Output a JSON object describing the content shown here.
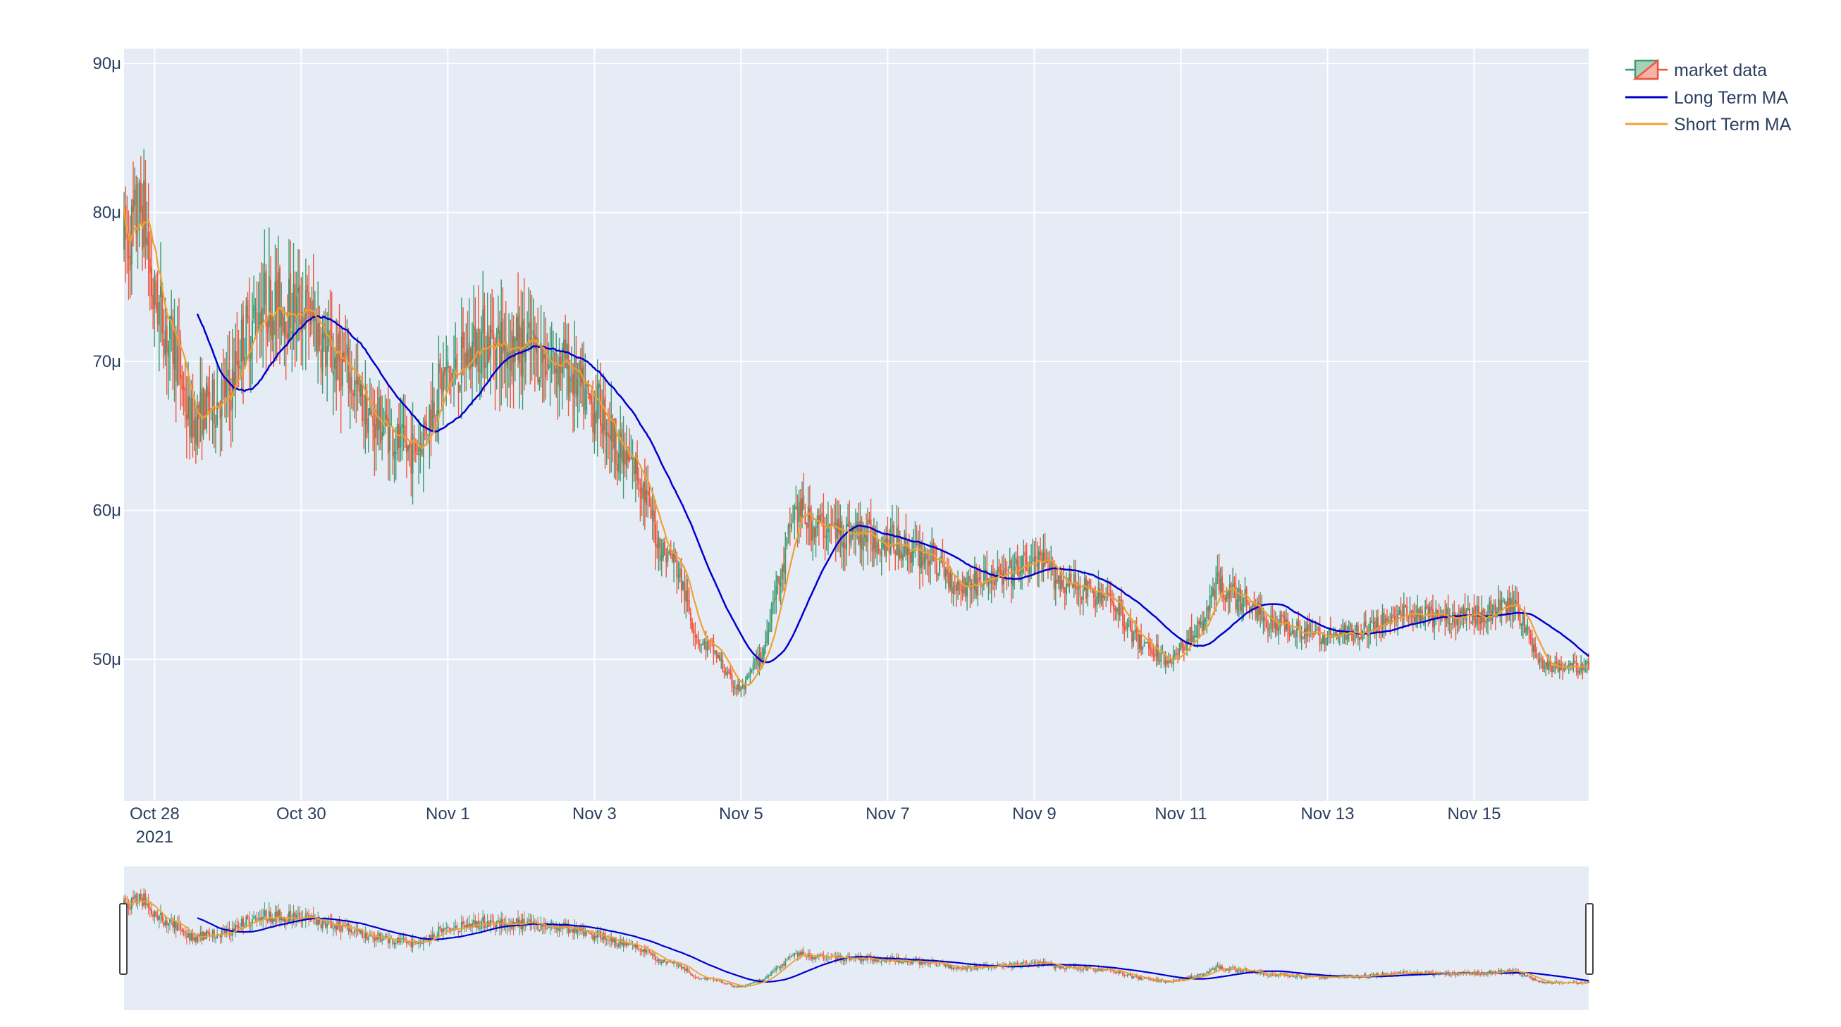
{
  "chart_data": {
    "type": "candlestick",
    "yaxis": {
      "unit_suffix": "μ",
      "ticks": [
        "50μ",
        "60μ",
        "70μ",
        "80μ",
        "90μ"
      ],
      "tick_values": [
        50,
        60,
        70,
        80,
        90
      ],
      "range": [
        40.5,
        91
      ]
    },
    "xaxis": {
      "range": [
        "2021-10-27T14:00",
        "2021-11-16T13:30"
      ],
      "ticks": [
        {
          "date": "2021-10-28",
          "label": "Oct 28",
          "sublabel": "2021"
        },
        {
          "date": "2021-10-30",
          "label": "Oct 30"
        },
        {
          "date": "2021-11-01",
          "label": "Nov 1"
        },
        {
          "date": "2021-11-03",
          "label": "Nov 3"
        },
        {
          "date": "2021-11-05",
          "label": "Nov 5"
        },
        {
          "date": "2021-11-07",
          "label": "Nov 7"
        },
        {
          "date": "2021-11-09",
          "label": "Nov 9"
        },
        {
          "date": "2021-11-11",
          "label": "Nov 11"
        },
        {
          "date": "2021-11-13",
          "label": "Nov 13"
        },
        {
          "date": "2021-11-15",
          "label": "Nov 15"
        }
      ]
    },
    "series_colors": {
      "increasing": "#3D9970",
      "decreasing": "#EF553B",
      "long_ma": "#0000CC",
      "short_ma": "#F0A030"
    },
    "legend": [
      "market data",
      "Long Term MA",
      "Short Term MA"
    ],
    "legend_position": "top-right",
    "grid": true,
    "rangeslider": true,
    "close_anchors": [
      [
        "2021-10-27T14:00",
        78
      ],
      [
        "2021-10-27T20:00",
        80
      ],
      [
        "2021-10-28T00:00",
        74
      ],
      [
        "2021-10-28T06:00",
        71
      ],
      [
        "2021-10-28T12:00",
        66
      ],
      [
        "2021-10-28T18:00",
        67
      ],
      [
        "2021-10-29T00:00",
        68
      ],
      [
        "2021-10-29T06:00",
        72
      ],
      [
        "2021-10-29T12:00",
        74
      ],
      [
        "2021-10-30T00:00",
        73.5
      ],
      [
        "2021-10-30T12:00",
        70
      ],
      [
        "2021-10-31T00:00",
        66
      ],
      [
        "2021-10-31T12:00",
        64
      ],
      [
        "2021-11-01T00:00",
        69
      ],
      [
        "2021-11-01T12:00",
        71.5
      ],
      [
        "2021-11-02T00:00",
        71
      ],
      [
        "2021-11-02T12:00",
        70
      ],
      [
        "2021-11-03T00:00",
        67
      ],
      [
        "2021-11-03T12:00",
        63
      ],
      [
        "2021-11-04T00:00",
        57
      ],
      [
        "2021-11-04T12:00",
        51
      ],
      [
        "2021-11-05T00:00",
        48
      ],
      [
        "2021-11-05T06:00",
        50
      ],
      [
        "2021-11-05T12:00",
        55
      ],
      [
        "2021-11-05T18:00",
        60
      ],
      [
        "2021-11-06T00:00",
        59
      ],
      [
        "2021-11-06T12:00",
        58.5
      ],
      [
        "2021-11-07T00:00",
        58
      ],
      [
        "2021-11-07T12:00",
        57
      ],
      [
        "2021-11-08T00:00",
        55
      ],
      [
        "2021-11-08T12:00",
        55.5
      ],
      [
        "2021-11-09T00:00",
        56.5
      ],
      [
        "2021-11-09T12:00",
        55
      ],
      [
        "2021-11-10T00:00",
        54
      ],
      [
        "2021-11-10T12:00",
        51
      ],
      [
        "2021-11-10T20:00",
        50
      ],
      [
        "2021-11-11T06:00",
        52
      ],
      [
        "2021-11-11T12:00",
        55
      ],
      [
        "2021-11-11T20:00",
        54
      ],
      [
        "2021-11-12T06:00",
        52.5
      ],
      [
        "2021-11-13T00:00",
        51.5
      ],
      [
        "2021-11-13T12:00",
        52
      ],
      [
        "2021-11-14T00:00",
        53
      ],
      [
        "2021-11-14T12:00",
        52.8
      ],
      [
        "2021-11-15T00:00",
        53
      ],
      [
        "2021-11-15T12:00",
        53.5
      ],
      [
        "2021-11-16T00:00",
        49.5
      ],
      [
        "2021-11-16T13:30",
        49.5
      ]
    ]
  }
}
